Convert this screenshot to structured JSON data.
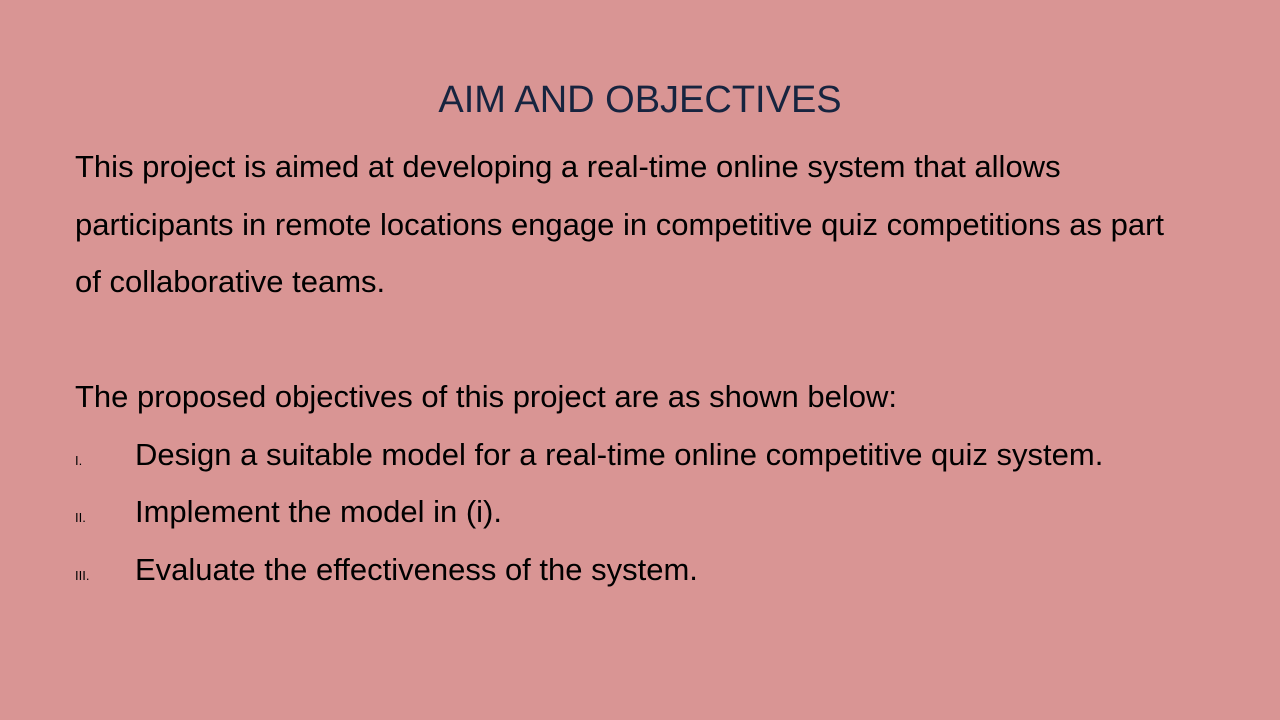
{
  "slide": {
    "title": "AIM AND OBJECTIVES",
    "aim_lines": [
      "This project is aimed at developing a real-time online system that allows",
      "participants in remote locations engage in competitive quiz competitions as part",
      "of collaborative teams."
    ],
    "objectives_intro": "The proposed objectives of this project are as shown below:",
    "objectives": [
      {
        "number": "I.",
        "text": "Design a suitable model for a real-time online competitive quiz system."
      },
      {
        "number": "II.",
        "text": "Implement the model in (i)."
      },
      {
        "number": "III.",
        "text": "Evaluate the effectiveness of the system."
      }
    ],
    "colors": {
      "background": "#d99594",
      "title": "#17243f",
      "body": "#000000"
    }
  }
}
